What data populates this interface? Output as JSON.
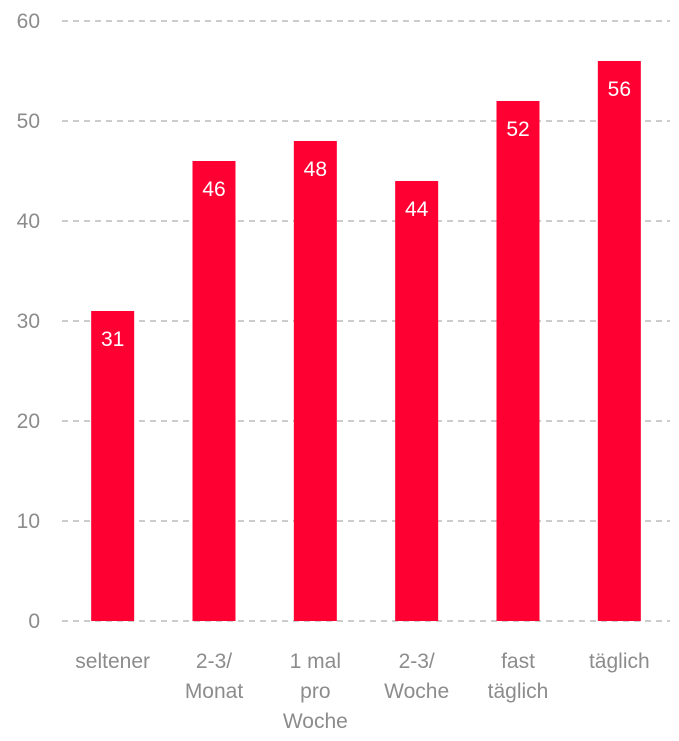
{
  "chart_data": {
    "type": "bar",
    "categories": [
      [
        "seltener"
      ],
      [
        "2-3/",
        "Monat"
      ],
      [
        "1 mal",
        "pro",
        "Woche"
      ],
      [
        "2-3/",
        "Woche"
      ],
      [
        "fast",
        "täglich"
      ],
      [
        "täglich"
      ]
    ],
    "values": [
      31,
      46,
      48,
      44,
      52,
      56
    ],
    "data_labels": [
      "31",
      "46",
      "48",
      "44",
      "52",
      "56"
    ],
    "y_ticks": [
      "0",
      "10",
      "20",
      "30",
      "40",
      "50",
      "60"
    ],
    "ylim": [
      0,
      60
    ],
    "grid": true,
    "legend": "none",
    "bar_color": "#ff0033",
    "title": "",
    "xlabel": "",
    "ylabel": ""
  }
}
